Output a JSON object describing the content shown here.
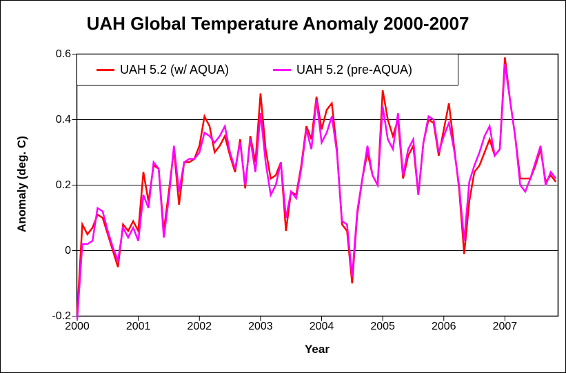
{
  "title": "UAH Global Temperature Anomaly 2000-2007",
  "axes": {
    "y_label": "Anomaly (deg. C)",
    "x_label": "Year",
    "y_tick_labels": [
      "0.6",
      "0.4",
      "0.2",
      "0",
      "-0.2"
    ],
    "y_tick_values": [
      0.6,
      0.4,
      0.2,
      0.0,
      -0.2
    ],
    "x_tick_labels": [
      "2000",
      "2001",
      "2002",
      "2003",
      "2004",
      "2005",
      "2006",
      "2007"
    ]
  },
  "legend": {
    "items": [
      {
        "label": "UAH 5.2 (w/ AQUA)",
        "color": "#FF0000"
      },
      {
        "label": "UAH 5.2 (pre-AQUA)",
        "color": "#FF00FF"
      }
    ]
  },
  "chart_data": {
    "type": "line",
    "title": "UAH Global Temperature Anomaly 2000-2007",
    "xlabel": "Year",
    "ylabel": "Anomaly (deg. C)",
    "x_start": "2000-01",
    "x_step": "1 month",
    "x_tick_labels": [
      "2000",
      "2001",
      "2002",
      "2003",
      "2004",
      "2005",
      "2006",
      "2007"
    ],
    "ylim": [
      -0.2,
      0.6
    ],
    "xlim_years": [
      2000.0,
      2007.87
    ],
    "grid": "horizontal lines at 0.4, 0.2, 0.0",
    "legend_position": "top-left inside plot",
    "series": [
      {
        "name": "UAH 5.2 (w/ AQUA)",
        "color": "#FF0000",
        "values": [
          -0.19,
          0.08,
          0.05,
          0.07,
          0.11,
          0.1,
          0.05,
          0.0,
          -0.05,
          0.08,
          0.06,
          0.09,
          0.06,
          0.24,
          0.15,
          0.26,
          0.25,
          0.06,
          0.18,
          0.31,
          0.14,
          0.27,
          0.27,
          0.28,
          0.32,
          0.41,
          0.38,
          0.3,
          0.32,
          0.35,
          0.29,
          0.24,
          0.34,
          0.19,
          0.35,
          0.27,
          0.48,
          0.31,
          0.22,
          0.23,
          0.27,
          0.06,
          0.18,
          0.17,
          0.26,
          0.38,
          0.34,
          0.47,
          0.37,
          0.43,
          0.45,
          0.31,
          0.08,
          0.06,
          -0.1,
          0.11,
          0.22,
          0.3,
          0.23,
          0.2,
          0.49,
          0.4,
          0.35,
          0.4,
          0.22,
          0.29,
          0.32,
          0.17,
          0.33,
          0.4,
          0.39,
          0.29,
          0.37,
          0.45,
          0.32,
          0.19,
          -0.01,
          0.15,
          0.24,
          0.26,
          0.3,
          0.34,
          0.29,
          0.31,
          0.59,
          0.46,
          0.35,
          0.22,
          0.22,
          0.22,
          0.26,
          0.31,
          0.21,
          0.23,
          0.21
        ]
      },
      {
        "name": "UAH 5.2 (pre-AQUA)",
        "color": "#FF00FF",
        "values": [
          -0.21,
          0.02,
          0.02,
          0.03,
          0.13,
          0.12,
          0.06,
          0.01,
          -0.03,
          0.07,
          0.04,
          0.07,
          0.03,
          0.17,
          0.13,
          0.27,
          0.25,
          0.04,
          0.16,
          0.32,
          0.18,
          0.27,
          0.28,
          0.28,
          0.3,
          0.36,
          0.35,
          0.33,
          0.35,
          0.38,
          0.3,
          0.25,
          0.33,
          0.2,
          0.34,
          0.24,
          0.42,
          0.27,
          0.17,
          0.2,
          0.27,
          0.1,
          0.18,
          0.16,
          0.25,
          0.37,
          0.31,
          0.46,
          0.33,
          0.36,
          0.41,
          0.3,
          0.09,
          0.08,
          -0.08,
          0.12,
          0.22,
          0.32,
          0.23,
          0.2,
          0.44,
          0.34,
          0.31,
          0.42,
          0.23,
          0.31,
          0.34,
          0.17,
          0.33,
          0.41,
          0.4,
          0.3,
          0.35,
          0.39,
          0.31,
          0.2,
          0.03,
          0.21,
          0.26,
          0.3,
          0.35,
          0.38,
          0.29,
          0.31,
          0.57,
          0.46,
          0.35,
          0.2,
          0.18,
          0.22,
          0.27,
          0.32,
          0.2,
          0.24,
          0.22
        ]
      }
    ]
  }
}
